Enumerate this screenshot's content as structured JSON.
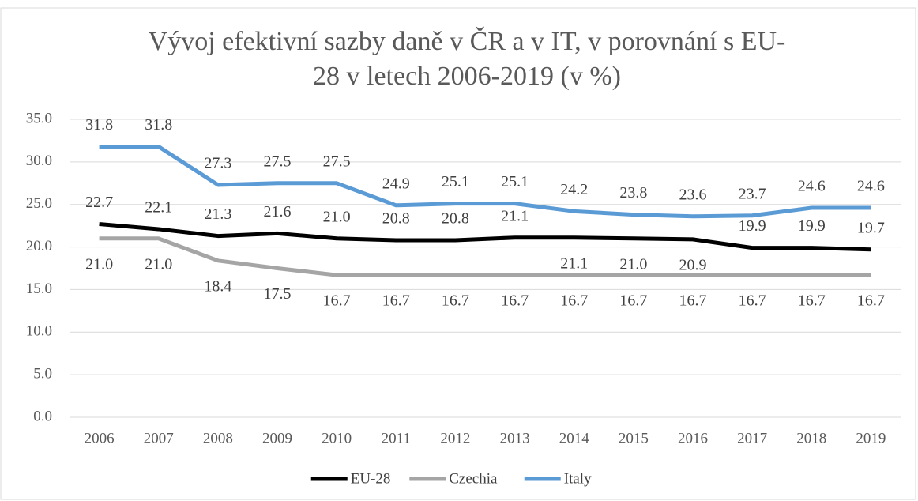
{
  "chart_data": {
    "type": "line",
    "title": [
      "Vývoj efektivní sazby daně v ČR a v IT, v porovnání s EU-",
      "28 v letech 2006-2019 (v %)"
    ],
    "categories": [
      "2006",
      "2007",
      "2008",
      "2009",
      "2010",
      "2011",
      "2012",
      "2013",
      "2014",
      "2015",
      "2016",
      "2017",
      "2018",
      "2019"
    ],
    "series": [
      {
        "name": "EU-28",
        "color": "#000000",
        "values": [
          22.7,
          22.1,
          21.3,
          21.6,
          21.0,
          20.8,
          20.8,
          21.1,
          21.1,
          21.0,
          20.9,
          19.9,
          19.9,
          19.7
        ],
        "value_labels": [
          "22.7",
          "22.1",
          "21.3",
          "21.6",
          "21.0",
          "20.8",
          "20.8",
          "21.1",
          "21.1",
          "21.0",
          "20.9",
          "19.9",
          "19.9",
          "19.7"
        ]
      },
      {
        "name": "Czechia",
        "color": "#a5a5a5",
        "values": [
          21.0,
          21.0,
          18.4,
          17.5,
          16.7,
          16.7,
          16.7,
          16.7,
          16.7,
          16.7,
          16.7,
          16.7,
          16.7,
          16.7
        ],
        "value_labels": [
          "21.0",
          "21.0",
          "18.4",
          "17.5",
          "16.7",
          "16.7",
          "16.7",
          "16.7",
          "16.7",
          "16.7",
          "16.7",
          "16.7",
          "16.7",
          "16.7"
        ]
      },
      {
        "name": "Italy",
        "color": "#5b9bd5",
        "values": [
          31.8,
          31.8,
          27.3,
          27.5,
          27.5,
          24.9,
          25.1,
          25.1,
          24.2,
          23.8,
          23.6,
          23.7,
          24.6,
          24.6
        ],
        "value_labels": [
          "31.8",
          "31.8",
          "27.3",
          "27.5",
          "27.5",
          "24.9",
          "25.1",
          "25.1",
          "24.2",
          "23.8",
          "23.6",
          "23.7",
          "24.6",
          "24.6"
        ]
      }
    ],
    "ylim": [
      0,
      35
    ],
    "yticks": [
      {
        "value": 0,
        "label": "0.0"
      },
      {
        "value": 5,
        "label": "5.0"
      },
      {
        "value": 10,
        "label": "10.0"
      },
      {
        "value": 15,
        "label": "15.0"
      },
      {
        "value": 20,
        "label": "20.0"
      },
      {
        "value": 25,
        "label": "25.0"
      },
      {
        "value": 30,
        "label": "30.0"
      },
      {
        "value": 35,
        "label": "35.0"
      }
    ],
    "grid": true,
    "legend": "bottom"
  }
}
